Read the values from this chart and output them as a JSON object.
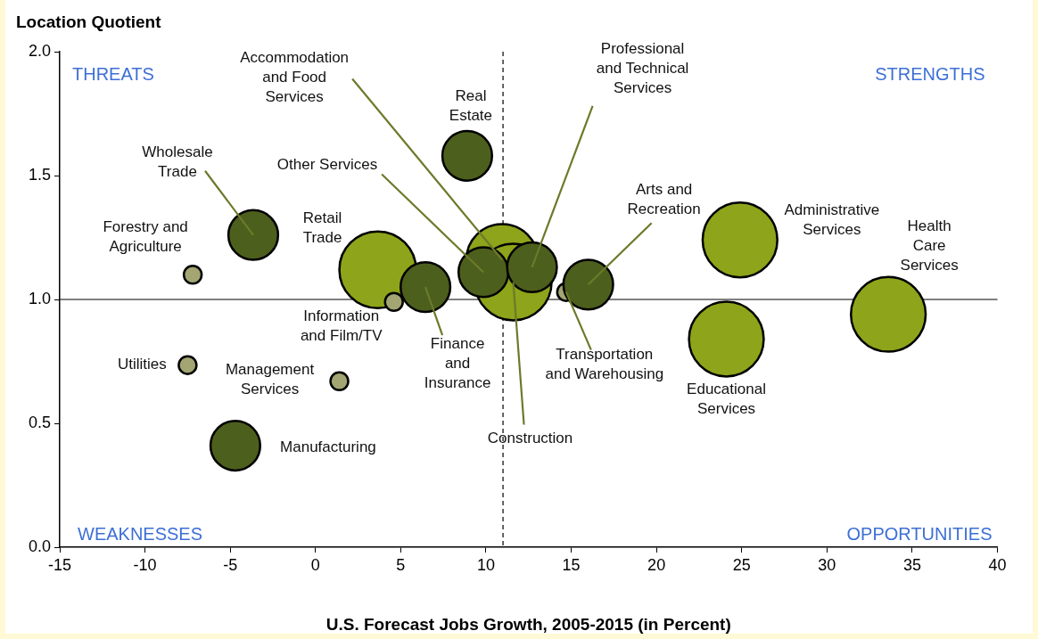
{
  "chart_data": {
    "type": "bubble",
    "xlabel": "U.S. Forecast Jobs Growth, 2005-2015 (in Percent)",
    "ylabel": "Location Quotient",
    "x": [
      10.95,
      11.6,
      3.65,
      -7.2,
      -3.65,
      -7.5,
      1.4,
      -4.7,
      4.6,
      6.45,
      8.9,
      9.85,
      12.7,
      14.7,
      16.0,
      24.9,
      24.1,
      33.6
    ],
    "values": [
      1.16,
      1.07,
      1.12,
      1.1,
      1.26,
      0.735,
      0.67,
      0.41,
      0.99,
      1.05,
      1.58,
      1.11,
      1.13,
      1.03,
      1.06,
      1.24,
      0.84,
      0.94
    ],
    "sizes": [
      0.87,
      1,
      1,
      0.054,
      0.42,
      0.054,
      0.054,
      0.42,
      0.054,
      0.42,
      0.42,
      0.42,
      0.42,
      0.054,
      0.42,
      0.95,
      0.95,
      0.95
    ],
    "colors": [
      "#8ea41a",
      "#8ea41a",
      "#8ea41a",
      "#a3a572",
      "#4d5f1c",
      "#a3a572",
      "#a3a572",
      "#4d5f1c",
      "#a3a572",
      "#4d5f1c",
      "#4d5f1c",
      "#4d5f1c",
      "#4d5f1c",
      "#a3a572",
      "#4d5f1c",
      "#8ea41a",
      "#8ea41a",
      "#8ea41a"
    ],
    "xlim": [
      -15,
      40
    ],
    "xticks": [
      -15,
      -10,
      -5,
      0,
      5,
      10,
      15,
      20,
      25,
      30,
      35,
      40
    ],
    "ylim": [
      0,
      2
    ],
    "yticks": [
      {
        "value": 0,
        "label": "0.0"
      },
      {
        "value": 0.5,
        "label": "0.5"
      },
      {
        "value": 1,
        "label": "1.0"
      },
      {
        "value": 1.5,
        "label": "1.5"
      },
      {
        "value": 2,
        "label": "2.0"
      }
    ],
    "grid": false,
    "legend": false,
    "ref_lines": [
      {
        "axis": "x",
        "value": 11,
        "line_style": "dashed",
        "color": "#000000"
      },
      {
        "axis": "y",
        "value": 1,
        "line_style": "solid",
        "color": "#000000"
      }
    ],
    "annotations": [
      "THREATS",
      "STRENGTHS",
      "WEAKNESSES",
      "OPPORTUNITIES",
      {
        "text": "Accommodation\nand Food\nServices",
        "x": 10.95,
        "y": 1.16
      },
      {
        "text": "Construction",
        "x": 11.6,
        "y": 1.07
      },
      {
        "text": "Retail\nTrade",
        "x": 3.65,
        "y": 1.12
      },
      {
        "text": "Forestry and\nAgriculture",
        "x": -7.2,
        "y": 1.1
      },
      {
        "text": "Wholesale\nTrade",
        "x": -3.65,
        "y": 1.26
      },
      {
        "text": "Utilities",
        "x": -7.5,
        "y": 0.735
      },
      {
        "text": "Management\nServices",
        "x": 1.4,
        "y": 0.67
      },
      {
        "text": "Manufacturing",
        "x": -4.7,
        "y": 0.41
      },
      {
        "text": "Information\nand Film/TV",
        "x": 4.6,
        "y": 0.99
      },
      {
        "text": "Finance\nand\nInsurance",
        "x": 6.45,
        "y": 1.05
      },
      {
        "text": "Real\nEstate",
        "x": 8.9,
        "y": 1.58
      },
      {
        "text": "Other Services",
        "x": 9.85,
        "y": 1.11
      },
      {
        "text": "Professional\nand Technical\nServices",
        "x": 12.7,
        "y": 1.13
      },
      {
        "text": "Transportation\nand Warehousing",
        "x": 14.7,
        "y": 1.03
      },
      {
        "text": "Arts and\nRecreation",
        "x": 16.0,
        "y": 1.06
      },
      {
        "text": "Administrative\nServices",
        "x": 24.9,
        "y": 1.24
      },
      {
        "text": "Educational\nServices",
        "x": 24.1,
        "y": 0.84
      },
      {
        "text": "Health\nCare\nServices",
        "x": 33.6,
        "y": 0.94
      }
    ]
  }
}
